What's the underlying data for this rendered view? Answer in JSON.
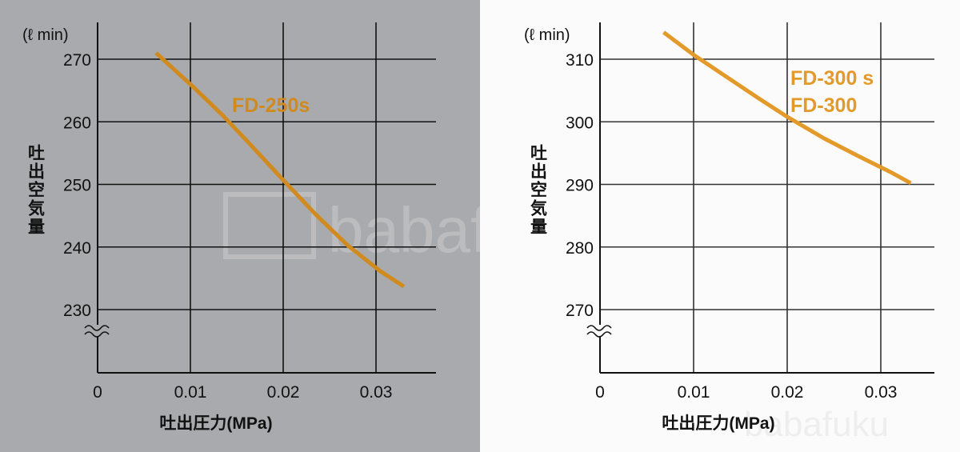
{
  "watermark": {
    "text": "babafuku"
  },
  "chart_data": [
    {
      "type": "line",
      "xlabel": "吐出圧力(MPa)",
      "ylabel": "吐出空気量",
      "yunit": "(ℓ min)",
      "xlim": [
        0,
        0.035
      ],
      "ylim": [
        220,
        272
      ],
      "xticks": [
        0,
        0.01,
        0.02,
        0.03
      ],
      "xtick_labels": [
        "0",
        "0.01",
        "0.02",
        "0.03"
      ],
      "yticks": [
        230,
        240,
        250,
        260,
        270
      ],
      "ytick_labels": [
        "230",
        "240",
        "250",
        "260",
        "270"
      ],
      "axis_break": true,
      "grid": true,
      "background": "#a9aaad",
      "series": [
        {
          "name": "FD-250s",
          "color": "#d08a1e",
          "x": [
            0.0063,
            0.0105,
            0.0135,
            0.0165,
            0.02,
            0.0235,
            0.027,
            0.0305,
            0.033
          ],
          "y": [
            271.0,
            265.3,
            261.0,
            256.3,
            250.7,
            245.2,
            240.2,
            236.1,
            233.7
          ]
        }
      ]
    },
    {
      "type": "line",
      "xlabel": "吐出圧力(MPa)",
      "ylabel": "吐出空気量",
      "yunit": "(ℓ min)",
      "xlim": [
        0,
        0.035
      ],
      "ylim": [
        260,
        312
      ],
      "xticks": [
        0,
        0.01,
        0.02,
        0.03
      ],
      "xtick_labels": [
        "0",
        "0.01",
        "0.02",
        "0.03"
      ],
      "yticks": [
        270,
        280,
        290,
        300,
        310
      ],
      "ytick_labels": [
        "270",
        "280",
        "290",
        "300",
        "310"
      ],
      "axis_break": true,
      "grid": true,
      "background": "#fbfbfb",
      "series": [
        {
          "name": "FD-300s\nFD-300",
          "legend_lines": [
            "FD-300 s",
            "FD-300"
          ],
          "color": "#e39a2a",
          "x": [
            0.0068,
            0.01,
            0.0135,
            0.017,
            0.02,
            0.024,
            0.0275,
            0.031,
            0.0332
          ],
          "y": [
            314.3,
            310.7,
            307.2,
            303.7,
            300.8,
            297.3,
            294.6,
            292.0,
            290.2
          ]
        }
      ]
    }
  ]
}
